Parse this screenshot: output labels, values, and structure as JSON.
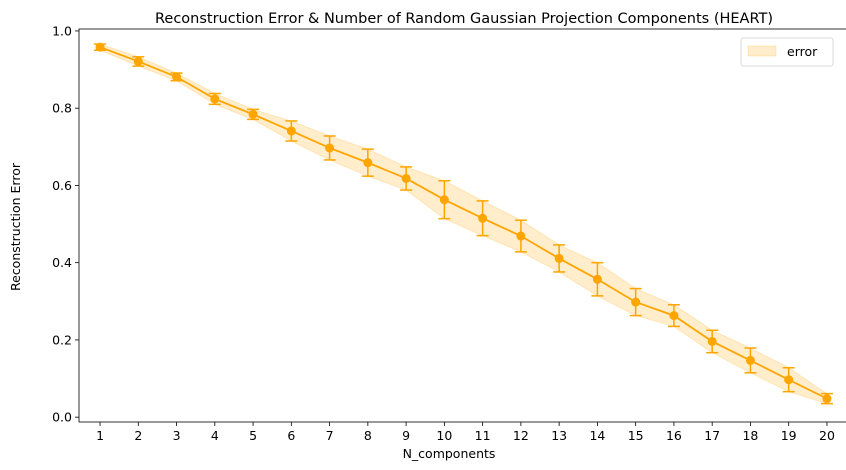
{
  "chart_data": {
    "type": "line",
    "title": "Reconstruction Error & Number of Random Gaussian Projection Components (HEART)",
    "xlabel": "N_components",
    "ylabel": "Reconstruction Error",
    "xlim": [
      0.45,
      20.55
    ],
    "ylim": [
      -0.0125,
      1.005
    ],
    "x_ticks": [
      1,
      2,
      3,
      4,
      5,
      6,
      7,
      8,
      9,
      10,
      11,
      12,
      13,
      14,
      15,
      16,
      17,
      18,
      19,
      20
    ],
    "y_ticks": [
      0.0,
      0.2,
      0.4,
      0.6,
      0.8,
      1.0
    ],
    "y_tick_labels": [
      "0.0",
      "0.2",
      "0.4",
      "0.6",
      "0.8",
      "1.0"
    ],
    "grid": false,
    "legend": {
      "position": "top-right",
      "entries": [
        "error"
      ]
    },
    "series": [
      {
        "name": "error",
        "color": "#ffa500",
        "x": [
          1,
          2,
          3,
          4,
          5,
          6,
          7,
          8,
          9,
          10,
          11,
          12,
          13,
          14,
          15,
          16,
          17,
          18,
          19,
          20
        ],
        "y": [
          0.958,
          0.921,
          0.881,
          0.824,
          0.784,
          0.741,
          0.697,
          0.659,
          0.618,
          0.563,
          0.515,
          0.469,
          0.411,
          0.357,
          0.298,
          0.263,
          0.196,
          0.147,
          0.097,
          0.048
        ],
        "err": [
          0.008,
          0.012,
          0.01,
          0.014,
          0.013,
          0.026,
          0.031,
          0.035,
          0.03,
          0.049,
          0.045,
          0.041,
          0.035,
          0.043,
          0.035,
          0.028,
          0.029,
          0.032,
          0.031,
          0.013
        ]
      }
    ]
  }
}
